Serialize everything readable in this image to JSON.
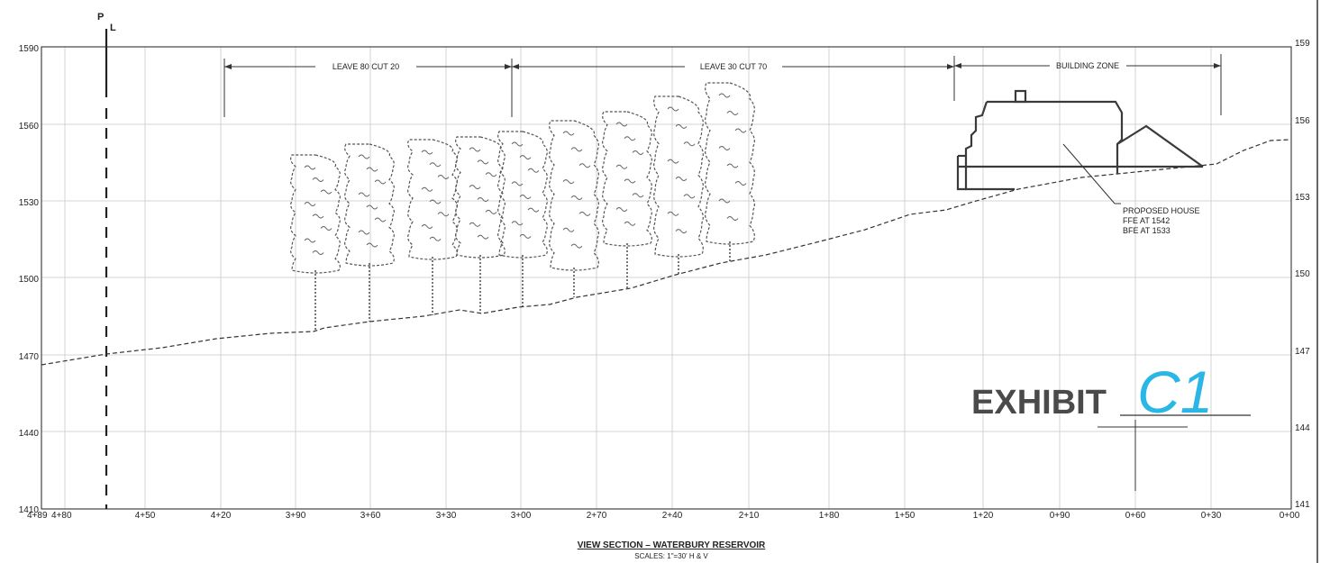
{
  "property_line": {
    "label_top": "P",
    "label_bottom": "L"
  },
  "elevation_ticks_left": [
    "1590",
    "1560",
    "1530",
    "1500",
    "1470",
    "1440",
    "1410"
  ],
  "elevation_ticks_right": [
    "159",
    "156",
    "153",
    "150",
    "147",
    "144",
    "141"
  ],
  "station_ticks": [
    "4+89",
    "4+80",
    "4+50",
    "4+20",
    "3+90",
    "3+60",
    "3+30",
    "3+00",
    "2+70",
    "2+40",
    "2+10",
    "1+80",
    "1+50",
    "1+20",
    "0+90",
    "0+60",
    "0+30",
    "0+00"
  ],
  "zones": [
    {
      "label": "LEAVE 80 CUT 20"
    },
    {
      "label": "LEAVE 30 CUT 70"
    },
    {
      "label": "BUILDING ZONE"
    }
  ],
  "house_callout": [
    "PROPOSED HOUSE",
    "FFE AT 1542",
    "BFE AT 1533"
  ],
  "exhibit": {
    "label": "EXHIBIT",
    "mark": "C1",
    "mark_color": "#2bb7e6"
  },
  "title": "VIEW SECTION – WATERBURY RESERVOIR",
  "subtitle": "SCALES: 1\"=30' H & V"
}
